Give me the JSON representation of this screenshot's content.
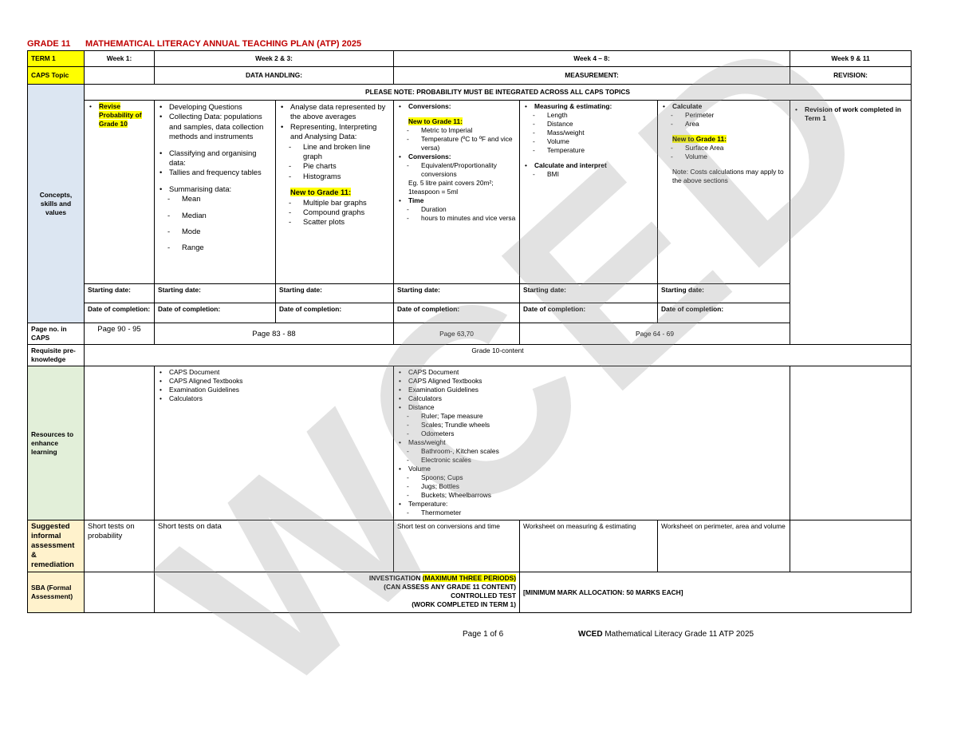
{
  "header": {
    "grade": "GRADE 11",
    "title": "MATHEMATICAL LITERACY ANNUAL TEACHING PLAN (ATP) 2025"
  },
  "table": {
    "term": "TERM 1",
    "weeks": [
      "Week 1:",
      "Week 2 & 3:",
      "Week 4 – 8:",
      "Week 9 & 11"
    ],
    "caps_topic_label": "CAPS Topic",
    "topics": [
      "DATA HANDLING:",
      "MEASUREMENT:",
      "REVISION:"
    ],
    "concepts_label": "Concepts, skills and values",
    "note": "PLEASE NOTE: PROBABILITY MUST BE INTEGRATED ACROSS ALL CAPS TOPICS",
    "concepts": [
      [
        {
          "text": "Revise Probability of Grade 10",
          "style": "bullet",
          "bold": true,
          "highlight": true
        }
      ],
      [
        {
          "text": "Developing Questions",
          "style": "bullet"
        },
        {
          "text": "Collecting Data: populations and samples, data collection methods and instruments",
          "style": "bullet"
        },
        {
          "text": "Classifying and organising data:",
          "style": "bullet",
          "gap": true
        },
        {
          "text": "Tallies and frequency tables",
          "style": "bullet"
        },
        {
          "text": "Summarising data:",
          "style": "bullet",
          "gap": true
        },
        {
          "text": "Mean",
          "style": "dash"
        },
        {
          "text": "Median",
          "style": "dash",
          "gap": true
        },
        {
          "text": "Mode",
          "style": "dash",
          "gap": true
        },
        {
          "text": "Range",
          "style": "dash",
          "gap": true
        }
      ],
      [
        {
          "text": "Analyse data represented by the above averages",
          "style": "bullet"
        },
        {
          "text": "Representing, Interpreting and Analysing Data:",
          "style": "bullet"
        },
        {
          "text": "Line and broken line graph",
          "style": "dash"
        },
        {
          "text": "Pie charts",
          "style": "dash"
        },
        {
          "text": "Histograms",
          "style": "dash"
        },
        {
          "text": "New to Grade 11:",
          "style": "plain",
          "bold": true,
          "highlight": true,
          "gap": true
        },
        {
          "text": "Multiple bar graphs",
          "style": "dash"
        },
        {
          "text": "Compound graphs",
          "style": "dash"
        },
        {
          "text": "Scatter plots",
          "style": "dash"
        }
      ],
      [
        {
          "text": "Conversions:",
          "style": "bullet",
          "bold": true
        },
        {
          "text": "New to Grade 11:",
          "style": "plain",
          "bold": true,
          "highlight": true,
          "gap": true
        },
        {
          "text": "Metric to Imperial",
          "style": "dash"
        },
        {
          "text": "Temperature (ºC to ºF and vice versa)",
          "style": "dash"
        },
        {
          "text": "Conversions:",
          "style": "bullet",
          "bold": true
        },
        {
          "text": "Equivalent/Proportionality conversions",
          "style": "dash"
        },
        {
          "text": "Eg. 5 litre paint covers 20m²; 1teaspoon = 5ml",
          "style": "plain"
        },
        {
          "text": "Time",
          "style": "bullet",
          "bold": true
        },
        {
          "text": "Duration",
          "style": "dash"
        },
        {
          "text": "hours to minutes and vice versa",
          "style": "dash"
        }
      ],
      [
        {
          "text": "Measuring & estimating:",
          "style": "bullet",
          "bold": true
        },
        {
          "text": "Length",
          "style": "dash"
        },
        {
          "text": "Distance",
          "style": "dash"
        },
        {
          "text": "Mass/weight",
          "style": "dash"
        },
        {
          "text": "Volume",
          "style": "dash"
        },
        {
          "text": "Temperature",
          "style": "dash"
        },
        {
          "text": "Calculate and interpret",
          "style": "bullet",
          "bold": true,
          "gap": true
        },
        {
          "text": "BMI",
          "style": "dash"
        }
      ],
      [
        {
          "text": "Calculate",
          "style": "bullet",
          "bold": true
        },
        {
          "text": "Perimeter",
          "style": "dash"
        },
        {
          "text": "Area",
          "style": "dash"
        },
        {
          "text": "New to Grade 11:",
          "style": "plain",
          "bold": true,
          "highlight": true,
          "gap": true
        },
        {
          "text": "Surface Area",
          "style": "dash"
        },
        {
          "text": "Volume",
          "style": "dash"
        },
        {
          "text": "Note: Costs calculations may apply to the above sections",
          "style": "plain",
          "gap": true
        }
      ],
      [
        {
          "text": "Revision of work completed in Term 1",
          "style": "bullet",
          "bold": true
        }
      ]
    ],
    "starting_date": [
      "Starting date:",
      "Starting date:",
      "Starting date:",
      "Starting date:",
      "Starting date:",
      "Starting date:"
    ],
    "date_of_completion": [
      "Date of completion:",
      "Date of completion:",
      "Date of completion:",
      "Date of completion:",
      "Date of completion:",
      "Date of completion:"
    ],
    "page_label": "Page no. in CAPS",
    "pages": [
      "Page 90 - 95",
      "Page 83 - 88",
      "Page 63,70",
      "Page 64 - 69"
    ],
    "requisite_label": "Requisite pre-knowledge",
    "requisite": "Grade 10-content",
    "resources_label": "Resources to enhance learning",
    "resources": [
      [
        {
          "text": "CAPS Document",
          "style": "bullet"
        },
        {
          "text": "CAPS Aligned Textbooks",
          "style": "bullet"
        },
        {
          "text": "Examination Guidelines",
          "style": "bullet"
        },
        {
          "text": "Calculators",
          "style": "bullet"
        }
      ],
      [
        {
          "text": "CAPS Document",
          "style": "bullet"
        },
        {
          "text": "CAPS Aligned Textbooks",
          "style": "bullet"
        },
        {
          "text": "Examination Guidelines",
          "style": "bullet"
        },
        {
          "text": "Calculators",
          "style": "bullet"
        },
        {
          "text": "Distance",
          "style": "bullet"
        },
        {
          "text": "Ruler; Tape measure",
          "style": "dash"
        },
        {
          "text": "Scales; Trundle wheels",
          "style": "dash"
        },
        {
          "text": "Odometers",
          "style": "dash"
        },
        {
          "text": "Mass/weight",
          "style": "bullet"
        },
        {
          "text": "Bathroom-, Kitchen scales",
          "style": "dash"
        },
        {
          "text": "Electronic scales",
          "style": "dash"
        },
        {
          "text": "Volume",
          "style": "bullet"
        },
        {
          "text": "Spoons; Cups",
          "style": "dash"
        },
        {
          "text": "Jugs; Bottles",
          "style": "dash"
        },
        {
          "text": "Buckets; Wheelbarrows",
          "style": "dash"
        },
        {
          "text": "Temperature:",
          "style": "bullet"
        },
        {
          "text": "Thermometer",
          "style": "dash"
        }
      ]
    ],
    "informal_label": "Suggested informal assessment & remediation",
    "informal": [
      "Short tests on probability",
      "Short tests on data",
      "Short test on conversions and time",
      "Worksheet on measuring & estimating",
      "Worksheet on perimeter, area and volume"
    ],
    "sba_label": "SBA (Formal Assessment)",
    "sba": {
      "investigation": "INVESTIGATION",
      "periods": "(MAXIMUM THREE PERIODS)",
      "lines": [
        "(CAN ASSESS ANY GRADE 11 CONTENT)",
        "CONTROLLED TEST",
        "(WORK COMPLETED IN TERM 1)"
      ],
      "marks": "[MINIMUM MARK ALLOCATION: 50 MARKS EACH]"
    }
  },
  "watermark": "WCED",
  "footer": {
    "page": "Page 1 of 6",
    "org": "WCED",
    "doc": "Mathematical Literacy Grade 11 ATP 2025"
  }
}
